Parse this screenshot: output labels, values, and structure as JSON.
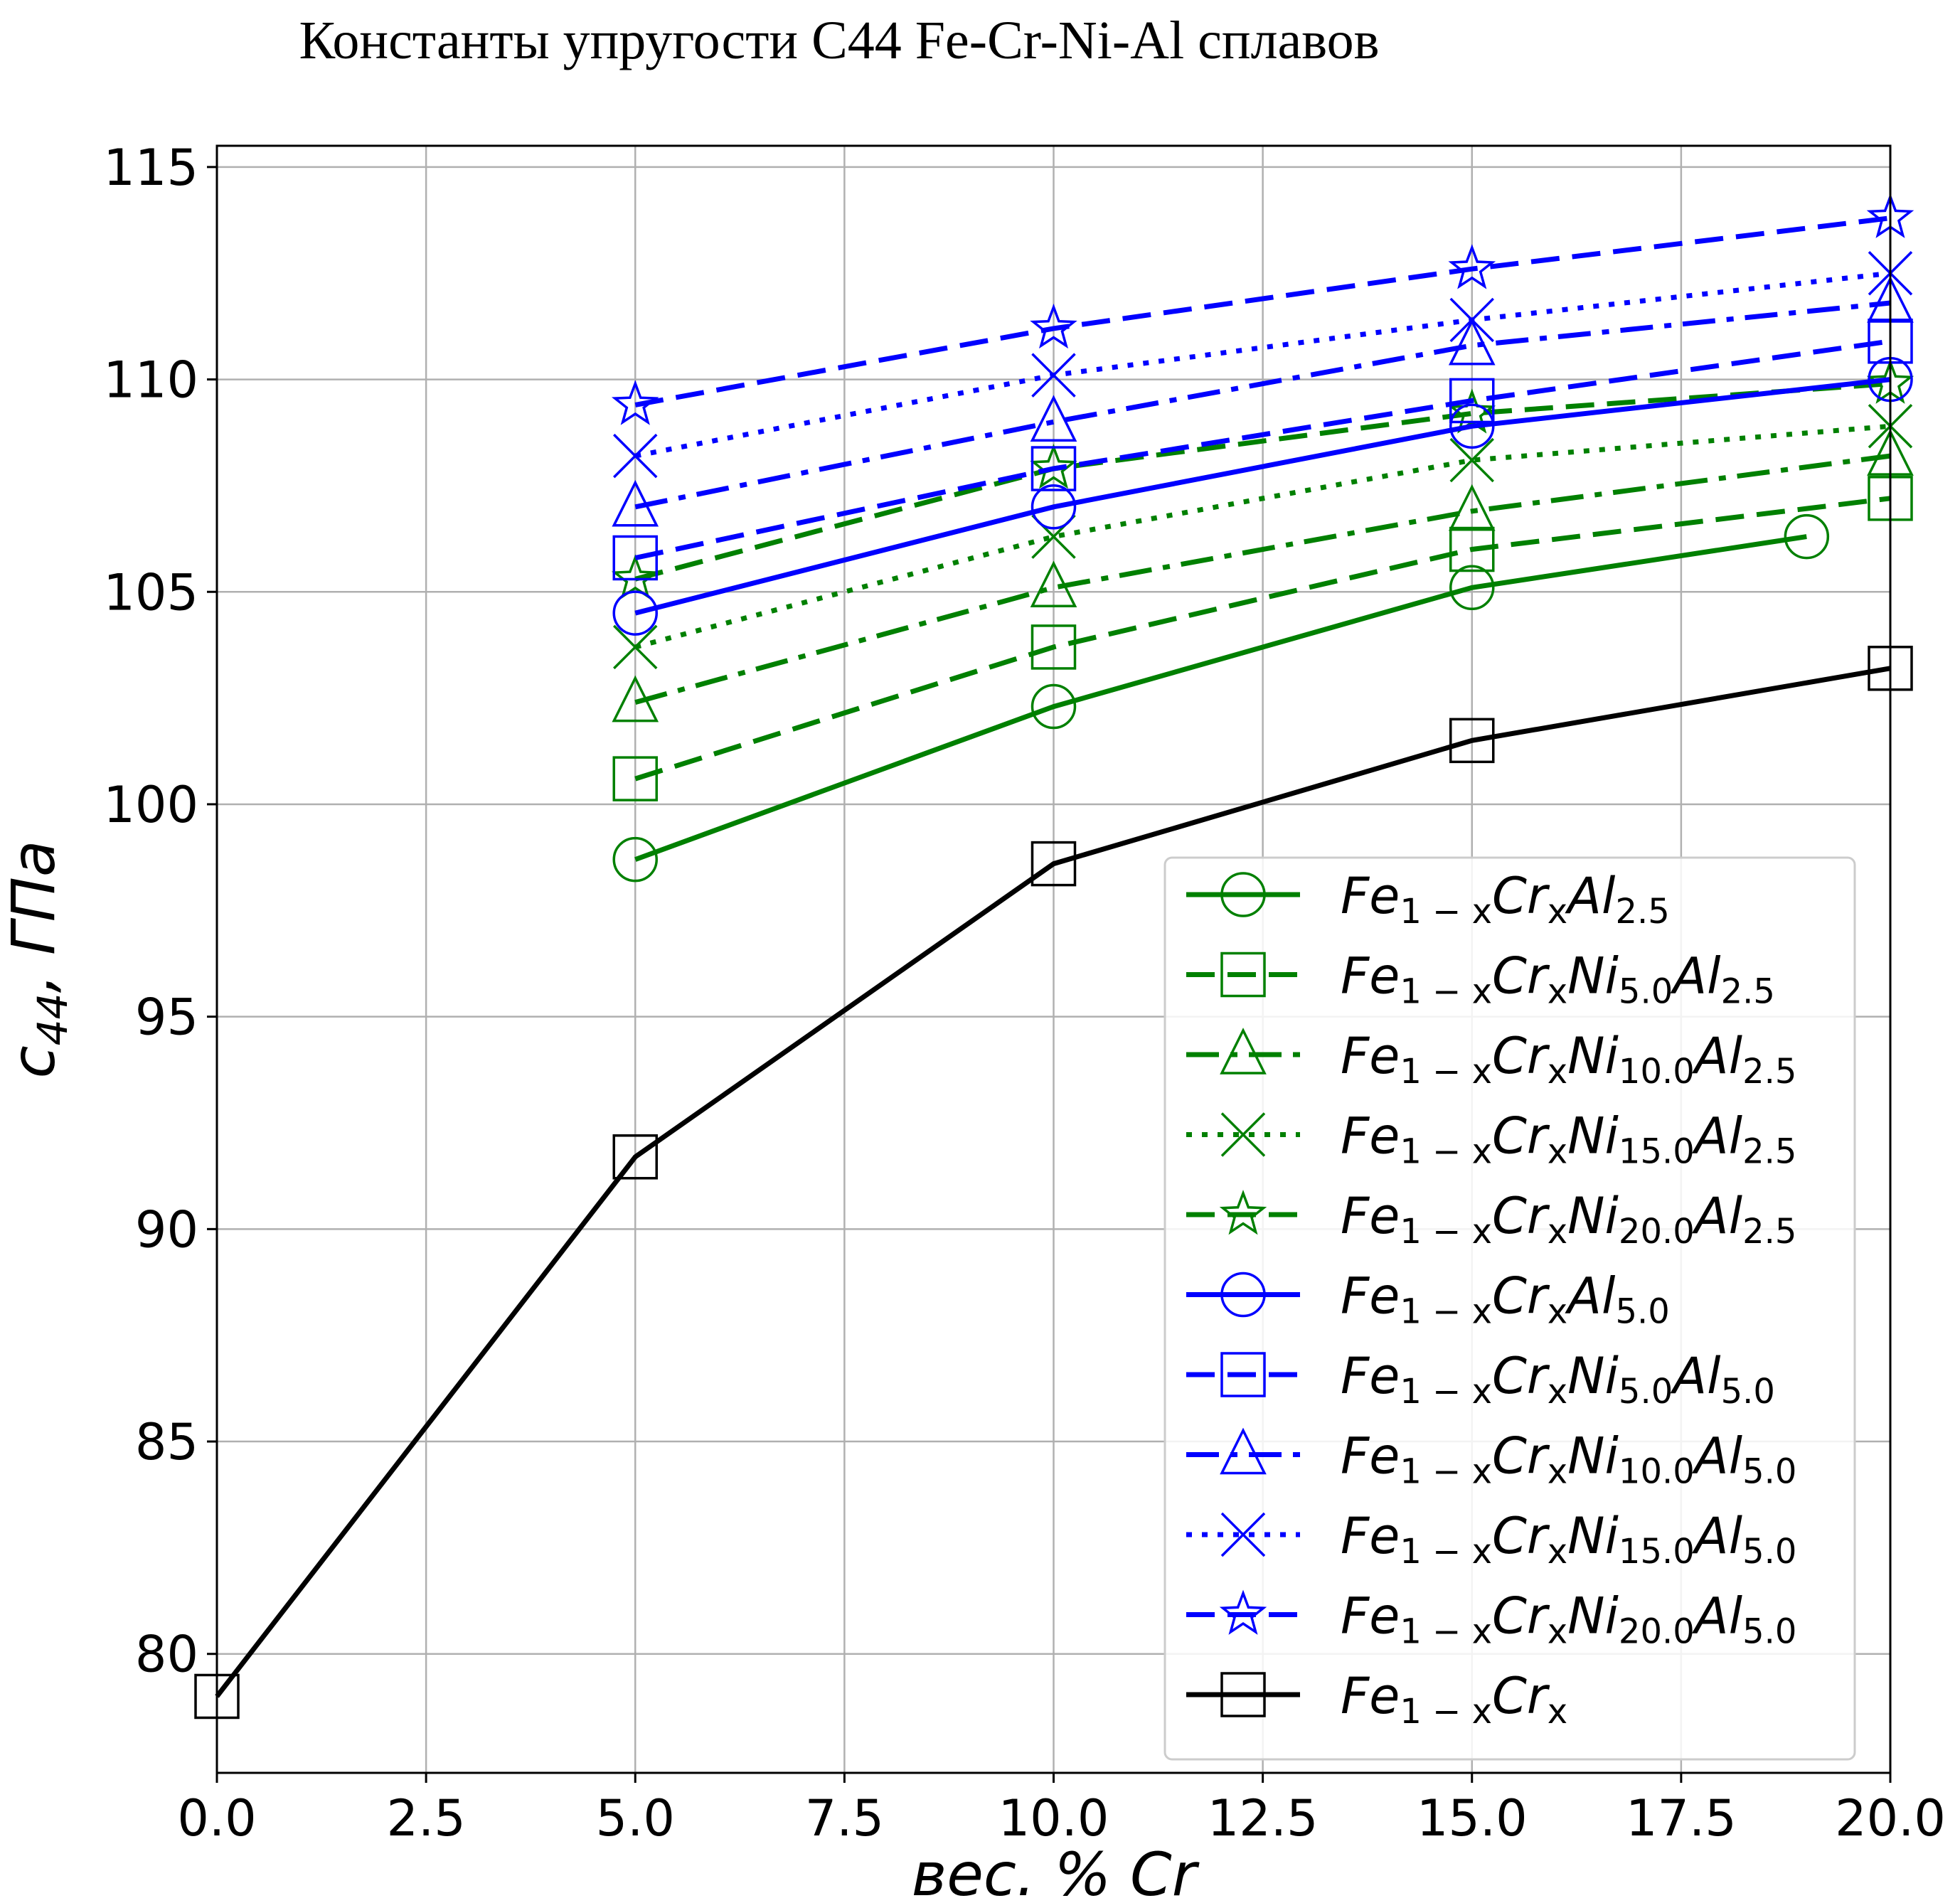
{
  "chart_data": {
    "type": "line",
    "title": "Константы упругости С44 Fe-Cr-Ni-Al сплавов",
    "xlabel": "вес. % Cr",
    "ylabel": "c44, ГПа",
    "ylabel_parts": {
      "c": "c",
      "sub": "44",
      "unit": ",  ГПа"
    },
    "xlim": [
      0,
      20
    ],
    "ylim": [
      77.2,
      115.5
    ],
    "x_ticks": [
      0,
      2.5,
      5,
      7.5,
      10,
      12.5,
      15,
      17.5,
      20
    ],
    "x_tick_labels": [
      "0.0",
      "2.5",
      "5.0",
      "7.5",
      "10.0",
      "12.5",
      "15.0",
      "17.5",
      "20.0"
    ],
    "y_ticks": [
      80,
      85,
      90,
      95,
      100,
      105,
      110,
      115
    ],
    "y_tick_labels": [
      "80",
      "85",
      "90",
      "95",
      "100",
      "105",
      "110",
      "115"
    ],
    "grid": true,
    "legend_position": "lower-right",
    "colors": {
      "green": "#008000",
      "blue": "#0000ff",
      "black": "#000000"
    },
    "series": [
      {
        "name": "Fe1−xCrxAl2.5",
        "label_parts": [
          [
            "Fe",
            "n"
          ],
          [
            "1 − x",
            "s"
          ],
          [
            "Cr",
            "n"
          ],
          [
            "x",
            "s"
          ],
          [
            "Al",
            "n"
          ],
          [
            "2.5",
            "s"
          ]
        ],
        "color": "#008000",
        "linestyle": "solid",
        "marker": "circle",
        "x": [
          5,
          10,
          15,
          19
        ],
        "y": [
          98.7,
          102.3,
          105.1,
          106.3
        ]
      },
      {
        "name": "Fe1−xCrxNi5.0Al2.5",
        "label_parts": [
          [
            "Fe",
            "n"
          ],
          [
            "1 − x",
            "s"
          ],
          [
            "Cr",
            "n"
          ],
          [
            "x",
            "s"
          ],
          [
            "Ni",
            "n"
          ],
          [
            "5.0",
            "s"
          ],
          [
            "Al",
            "n"
          ],
          [
            "2.5",
            "s"
          ]
        ],
        "color": "#008000",
        "linestyle": "dashed",
        "marker": "square",
        "x": [
          5,
          10,
          15,
          20
        ],
        "y": [
          100.6,
          103.7,
          106.0,
          107.2
        ]
      },
      {
        "name": "Fe1−xCrxNi10.0Al2.5",
        "label_parts": [
          [
            "Fe",
            "n"
          ],
          [
            "1 − x",
            "s"
          ],
          [
            "Cr",
            "n"
          ],
          [
            "x",
            "s"
          ],
          [
            "Ni",
            "n"
          ],
          [
            "10.0",
            "s"
          ],
          [
            "Al",
            "n"
          ],
          [
            "2.5",
            "s"
          ]
        ],
        "color": "#008000",
        "linestyle": "dashdot",
        "marker": "triangle",
        "x": [
          5,
          10,
          15,
          20
        ],
        "y": [
          102.4,
          105.1,
          106.9,
          108.2
        ]
      },
      {
        "name": "Fe1−xCrxNi15.0Al2.5",
        "label_parts": [
          [
            "Fe",
            "n"
          ],
          [
            "1 − x",
            "s"
          ],
          [
            "Cr",
            "n"
          ],
          [
            "x",
            "s"
          ],
          [
            "Ni",
            "n"
          ],
          [
            "15.0",
            "s"
          ],
          [
            "Al",
            "n"
          ],
          [
            "2.5",
            "s"
          ]
        ],
        "color": "#008000",
        "linestyle": "dotted",
        "marker": "x",
        "x": [
          5,
          10,
          15,
          20
        ],
        "y": [
          103.7,
          106.3,
          108.1,
          108.9
        ]
      },
      {
        "name": "Fe1−xCrxNi20.0Al2.5",
        "label_parts": [
          [
            "Fe",
            "n"
          ],
          [
            "1 − x",
            "s"
          ],
          [
            "Cr",
            "n"
          ],
          [
            "x",
            "s"
          ],
          [
            "Ni",
            "n"
          ],
          [
            "20.0",
            "s"
          ],
          [
            "Al",
            "n"
          ],
          [
            "2.5",
            "s"
          ]
        ],
        "color": "#008000",
        "linestyle": "dashed",
        "marker": "star",
        "x": [
          5,
          10,
          15,
          20
        ],
        "y": [
          105.3,
          107.9,
          109.2,
          109.9
        ]
      },
      {
        "name": "Fe1−xCrxAl5.0",
        "label_parts": [
          [
            "Fe",
            "n"
          ],
          [
            "1 − x",
            "s"
          ],
          [
            "Cr",
            "n"
          ],
          [
            "x",
            "s"
          ],
          [
            "Al",
            "n"
          ],
          [
            "5.0",
            "s"
          ]
        ],
        "color": "#0000ff",
        "linestyle": "solid",
        "marker": "circle",
        "x": [
          5,
          10,
          15,
          20
        ],
        "y": [
          104.5,
          107.0,
          108.9,
          110.0
        ]
      },
      {
        "name": "Fe1−xCrxNi5.0Al5.0",
        "label_parts": [
          [
            "Fe",
            "n"
          ],
          [
            "1 − x",
            "s"
          ],
          [
            "Cr",
            "n"
          ],
          [
            "x",
            "s"
          ],
          [
            "Ni",
            "n"
          ],
          [
            "5.0",
            "s"
          ],
          [
            "Al",
            "n"
          ],
          [
            "5.0",
            "s"
          ]
        ],
        "color": "#0000ff",
        "linestyle": "dashed",
        "marker": "square",
        "x": [
          5,
          10,
          15,
          20
        ],
        "y": [
          105.8,
          107.9,
          109.5,
          110.9
        ]
      },
      {
        "name": "Fe1−xCrxNi10.0Al5.0",
        "label_parts": [
          [
            "Fe",
            "n"
          ],
          [
            "1 − x",
            "s"
          ],
          [
            "Cr",
            "n"
          ],
          [
            "x",
            "s"
          ],
          [
            "Ni",
            "n"
          ],
          [
            "10.0",
            "s"
          ],
          [
            "Al",
            "n"
          ],
          [
            "5.0",
            "s"
          ]
        ],
        "color": "#0000ff",
        "linestyle": "dashdot",
        "marker": "triangle",
        "x": [
          5,
          10,
          15,
          20
        ],
        "y": [
          107.0,
          109.0,
          110.8,
          111.8
        ]
      },
      {
        "name": "Fe1−xCrxNi15.0Al5.0",
        "label_parts": [
          [
            "Fe",
            "n"
          ],
          [
            "1 − x",
            "s"
          ],
          [
            "Cr",
            "n"
          ],
          [
            "x",
            "s"
          ],
          [
            "Ni",
            "n"
          ],
          [
            "15.0",
            "s"
          ],
          [
            "Al",
            "n"
          ],
          [
            "5.0",
            "s"
          ]
        ],
        "color": "#0000ff",
        "linestyle": "dotted",
        "marker": "x",
        "x": [
          5,
          10,
          15,
          20
        ],
        "y": [
          108.2,
          110.1,
          111.4,
          112.5
        ]
      },
      {
        "name": "Fe1−xCrxNi20.0Al5.0",
        "label_parts": [
          [
            "Fe",
            "n"
          ],
          [
            "1 − x",
            "s"
          ],
          [
            "Cr",
            "n"
          ],
          [
            "x",
            "s"
          ],
          [
            "Ni",
            "n"
          ],
          [
            "20.0",
            "s"
          ],
          [
            "Al",
            "n"
          ],
          [
            "5.0",
            "s"
          ]
        ],
        "color": "#0000ff",
        "linestyle": "dashed",
        "marker": "star",
        "x": [
          5,
          10,
          15,
          20
        ],
        "y": [
          109.4,
          111.2,
          112.6,
          113.8
        ]
      },
      {
        "name": "Fe1−xCrx",
        "label_parts": [
          [
            "Fe",
            "n"
          ],
          [
            "1 − x",
            "s"
          ],
          [
            "Cr",
            "n"
          ],
          [
            "x",
            "s"
          ]
        ],
        "color": "#000000",
        "linestyle": "solid",
        "marker": "square",
        "x": [
          0,
          5,
          10,
          15,
          20
        ],
        "y": [
          79.0,
          91.7,
          98.6,
          101.5,
          103.2
        ]
      }
    ]
  }
}
